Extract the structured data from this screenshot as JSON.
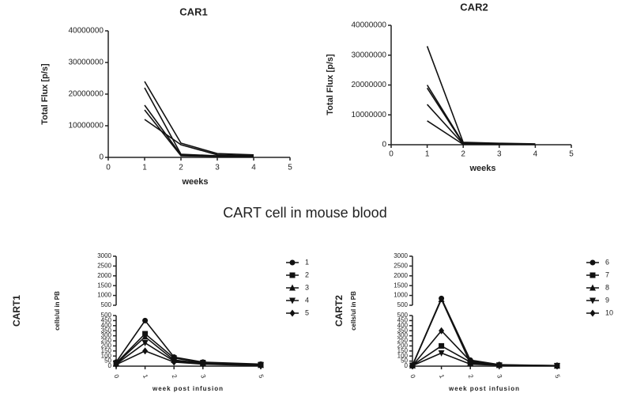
{
  "figure_title": "CART cell in mouse blood",
  "chart_data": [
    {
      "type": "line",
      "title": "CAR1",
      "x_label": "weeks",
      "y_label": "Total Flux [p/s]",
      "xlim": [
        0,
        5
      ],
      "xticks": [
        0,
        1,
        2,
        3,
        4,
        5
      ],
      "ylim": [
        0,
        40000000
      ],
      "yticks": [
        0,
        10000000,
        20000000,
        30000000,
        40000000
      ],
      "x": [
        1,
        2,
        3,
        4
      ],
      "series": [
        {
          "color": "#111",
          "values": [
            24000000,
            4500000,
            1200000,
            800000
          ]
        },
        {
          "color": "#111",
          "values": [
            22000000,
            1000000,
            500000,
            300000
          ]
        },
        {
          "color": "#111",
          "values": [
            16500000,
            800000,
            400000,
            300000
          ]
        },
        {
          "color": "#111",
          "values": [
            15000000,
            500000,
            300000,
            200000
          ]
        },
        {
          "color": "#111",
          "values": [
            12000000,
            4000000,
            800000,
            500000
          ]
        }
      ]
    },
    {
      "type": "line",
      "title": "CAR2",
      "x_label": "weeks",
      "y_label": "Total Flux [p/s]",
      "xlim": [
        0,
        5
      ],
      "xticks": [
        0,
        1,
        2,
        3,
        4,
        5
      ],
      "ylim": [
        0,
        40000000
      ],
      "yticks": [
        0,
        10000000,
        20000000,
        30000000,
        40000000
      ],
      "x": [
        1,
        2,
        3,
        4
      ],
      "series": [
        {
          "color": "#111",
          "values": [
            33000000,
            800000,
            500000,
            300000
          ]
        },
        {
          "color": "#111",
          "values": [
            20000000,
            500000,
            300000,
            200000
          ]
        },
        {
          "color": "#111",
          "values": [
            19000000,
            300000,
            200000,
            100000
          ]
        },
        {
          "color": "#111",
          "values": [
            13500000,
            200000,
            100000,
            100000
          ]
        },
        {
          "color": "#111",
          "values": [
            8000000,
            100000,
            100000,
            50000
          ]
        }
      ]
    },
    {
      "type": "line",
      "title": "CART1",
      "x_label": "week post infusion",
      "y_label": "cells/ul in PB",
      "xlim": [
        0,
        5
      ],
      "xticks": [
        0,
        1,
        2,
        3,
        5
      ],
      "ylim": [
        0,
        500
      ],
      "yticks": [
        0,
        50,
        100,
        150,
        200,
        250,
        300,
        350,
        400,
        450,
        500
      ],
      "ylim_break": [
        500,
        3000
      ],
      "yticks_break": [
        500,
        1000,
        1500,
        2000,
        2500,
        3000
      ],
      "legend": "right",
      "x": [
        0,
        1,
        2,
        3,
        5
      ],
      "series": [
        {
          "name": "1",
          "color": "#111",
          "marker": "circle",
          "values": [
            40,
            450,
            90,
            40,
            20
          ]
        },
        {
          "name": "2",
          "color": "#111",
          "marker": "square",
          "values": [
            30,
            320,
            80,
            35,
            15
          ]
        },
        {
          "name": "3",
          "color": "#111",
          "marker": "triangle",
          "values": [
            25,
            290,
            60,
            30,
            10
          ]
        },
        {
          "name": "4",
          "color": "#111",
          "marker": "triangle-down",
          "values": [
            20,
            230,
            50,
            25,
            10
          ]
        },
        {
          "name": "5",
          "color": "#111",
          "marker": "diamond",
          "values": [
            15,
            150,
            40,
            20,
            5
          ]
        }
      ]
    },
    {
      "type": "line",
      "title": "CART2",
      "x_label": "week post infusion",
      "y_label": "cells/ul in PB",
      "xlim": [
        0,
        5
      ],
      "xticks": [
        0,
        1,
        2,
        3,
        5
      ],
      "ylim": [
        0,
        500
      ],
      "yticks": [
        0,
        50,
        100,
        150,
        200,
        250,
        300,
        350,
        400,
        450,
        500
      ],
      "ylim_break": [
        500,
        3000
      ],
      "yticks_break": [
        500,
        1000,
        1500,
        2000,
        2500,
        3000
      ],
      "legend": "right",
      "x": [
        0,
        1,
        2,
        3,
        5
      ],
      "series": [
        {
          "name": "6",
          "color": "#111",
          "marker": "circle",
          "values": [
            10,
            850,
            60,
            15,
            5
          ]
        },
        {
          "name": "7",
          "color": "#111",
          "marker": "square",
          "values": [
            8,
            200,
            40,
            10,
            5
          ]
        },
        {
          "name": "8",
          "color": "#111",
          "marker": "triangle",
          "values": [
            5,
            800,
            30,
            10,
            3
          ]
        },
        {
          "name": "9",
          "color": "#111",
          "marker": "triangle-down",
          "values": [
            5,
            130,
            20,
            8,
            3
          ]
        },
        {
          "name": "10",
          "color": "#111",
          "marker": "diamond",
          "values": [
            5,
            350,
            50,
            12,
            5
          ]
        }
      ]
    }
  ]
}
